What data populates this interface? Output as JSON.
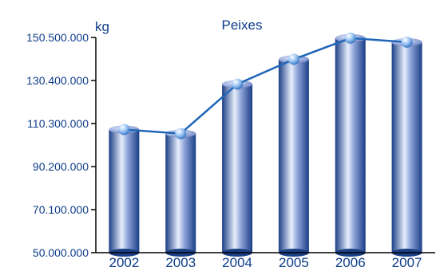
{
  "chart_data": {
    "type": "bar",
    "title": "Peixes",
    "ylabel": "kg",
    "xlabel": "",
    "categories": [
      "2002",
      "2003",
      "2004",
      "2005",
      "2006",
      "2007"
    ],
    "values": [
      107500000,
      105600000,
      128700000,
      140300000,
      150200000,
      148300000
    ],
    "ylim": [
      50000000,
      150500000
    ],
    "yticks": [
      "50.000.000",
      "70.100.000",
      "90.200.000",
      "110.300.000",
      "130.400.000",
      "150.500.000"
    ],
    "ytick_values": [
      50000000,
      70100000,
      90200000,
      110300000,
      130400000,
      150500000
    ],
    "overlay": "line-with-markers",
    "grid": false,
    "colors": {
      "bar_dark": "#1b3f86",
      "bar_light": "#e8eefc",
      "line": "#1f66b8",
      "text": "#0d3c8a"
    }
  }
}
